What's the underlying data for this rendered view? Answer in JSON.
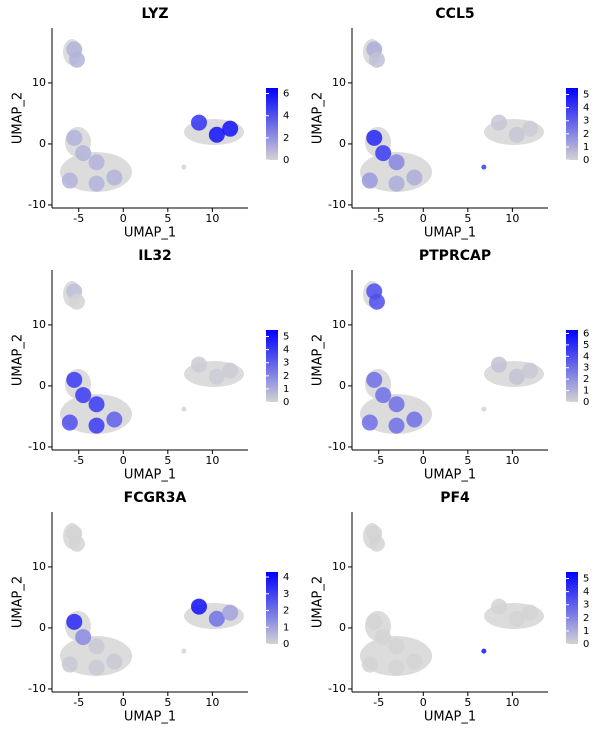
{
  "chart_data": [
    {
      "type": "scatter",
      "title": "LYZ",
      "xlabel": "UMAP_1",
      "ylabel": "UMAP_2",
      "x": [
        -5.5,
        -5.2,
        -5.5,
        -4.5,
        -3,
        -6,
        -3,
        -1,
        8.5,
        10.5,
        12,
        6.8
      ],
      "y": [
        15.5,
        13.8,
        1,
        -1.5,
        -3,
        -6,
        -6.5,
        -5.5,
        3.5,
        1.5,
        2.5,
        -3.8
      ],
      "values": [
        1,
        1,
        1,
        1,
        1,
        1,
        1,
        1,
        5,
        6,
        6,
        0
      ],
      "xlim": [
        -8,
        14
      ],
      "ylim": [
        -10.5,
        19
      ],
      "xticks": [
        -5,
        0,
        5,
        10
      ],
      "yticks": [
        -10,
        0,
        10
      ],
      "clim": [
        0,
        6.5
      ],
      "cticks": [
        0,
        2,
        4,
        6
      ],
      "color_low": "#d3d3d3",
      "color_high": "#0000ff"
    },
    {
      "type": "scatter",
      "title": "CCL5",
      "xlabel": "UMAP_1",
      "ylabel": "UMAP_2",
      "x": [
        -5.5,
        -5.2,
        -5.5,
        -4.5,
        -3,
        -6,
        -3,
        -1,
        8.5,
        10.5,
        12,
        6.8
      ],
      "y": [
        15.5,
        13.8,
        1,
        -1.5,
        -3,
        -6,
        -6.5,
        -5.5,
        3.5,
        1.5,
        2.5,
        -3.8
      ],
      "values": [
        1,
        0.5,
        4.5,
        4,
        2,
        1.5,
        1,
        1,
        0.3,
        0.3,
        0.2,
        4
      ],
      "xlim": [
        -8,
        14
      ],
      "ylim": [
        -10.5,
        19
      ],
      "xticks": [
        -5,
        0,
        5,
        10
      ],
      "yticks": [
        -10,
        0,
        10
      ],
      "clim": [
        0,
        5.5
      ],
      "cticks": [
        0,
        1,
        2,
        3,
        4,
        5
      ],
      "color_low": "#d3d3d3",
      "color_high": "#0000ff"
    },
    {
      "type": "scatter",
      "title": "IL32",
      "xlabel": "UMAP_1",
      "ylabel": "UMAP_2",
      "x": [
        -5.5,
        -5.2,
        -5.5,
        -4.5,
        -3,
        -6,
        -3,
        -1,
        8.5,
        10.5,
        12,
        6.8
      ],
      "y": [
        15.5,
        13.8,
        1,
        -1.5,
        -3,
        -6,
        -6.5,
        -5.5,
        3.5,
        1.5,
        2.5,
        -3.8
      ],
      "values": [
        0.5,
        0,
        4,
        4,
        4,
        3.5,
        4,
        3,
        0.2,
        0.2,
        0.2,
        0
      ],
      "xlim": [
        -8,
        14
      ],
      "ylim": [
        -10.5,
        19
      ],
      "xticks": [
        -5,
        0,
        5,
        10
      ],
      "yticks": [
        -10,
        0,
        10
      ],
      "clim": [
        0,
        5.5
      ],
      "cticks": [
        0,
        1,
        2,
        3,
        4,
        5
      ],
      "color_low": "#d3d3d3",
      "color_high": "#0000ff"
    },
    {
      "type": "scatter",
      "title": "PTPRCAP",
      "xlabel": "UMAP_1",
      "ylabel": "UMAP_2",
      "x": [
        -5.5,
        -5.2,
        -5.5,
        -4.5,
        -3,
        -6,
        -3,
        -1,
        8.5,
        10.5,
        12,
        6.8
      ],
      "y": [
        15.5,
        13.8,
        1,
        -1.5,
        -3,
        -6,
        -6.5,
        -5.5,
        3.5,
        1.5,
        2.5,
        -3.8
      ],
      "values": [
        4,
        4,
        3,
        3,
        3,
        3,
        3,
        3,
        0.5,
        0.5,
        0.3,
        0
      ],
      "xlim": [
        -8,
        14
      ],
      "ylim": [
        -10.5,
        19
      ],
      "xticks": [
        -5,
        0,
        5,
        10
      ],
      "yticks": [
        -10,
        0,
        10
      ],
      "clim": [
        0,
        6.3
      ],
      "cticks": [
        0,
        1,
        2,
        3,
        4,
        5,
        6
      ],
      "color_low": "#d3d3d3",
      "color_high": "#0000ff"
    },
    {
      "type": "scatter",
      "title": "FCGR3A",
      "xlabel": "UMAP_1",
      "ylabel": "UMAP_2",
      "x": [
        -5.5,
        -5.2,
        -5.5,
        -4.5,
        -3,
        -6,
        -3,
        -1,
        8.5,
        10.5,
        12,
        6.8
      ],
      "y": [
        15.5,
        13.8,
        1,
        -1.5,
        -3,
        -6,
        -6.5,
        -5.5,
        3.5,
        1.5,
        2.5,
        -3.8
      ],
      "values": [
        0,
        0,
        3.5,
        1.5,
        0.2,
        0.2,
        0.2,
        0.2,
        4,
        2,
        1,
        0
      ],
      "xlim": [
        -8,
        14
      ],
      "ylim": [
        -10.5,
        19
      ],
      "xticks": [
        -5,
        0,
        5,
        10
      ],
      "yticks": [
        -10,
        0,
        10
      ],
      "clim": [
        0,
        4.3
      ],
      "cticks": [
        0,
        1,
        2,
        3,
        4
      ],
      "color_low": "#d3d3d3",
      "color_high": "#0000ff"
    },
    {
      "type": "scatter",
      "title": "PF4",
      "xlabel": "UMAP_1",
      "ylabel": "UMAP_2",
      "x": [
        -5.5,
        -5.2,
        -5.5,
        -4.5,
        -3,
        -6,
        -3,
        -1,
        8.5,
        10.5,
        12,
        6.8
      ],
      "y": [
        15.5,
        13.8,
        1,
        -1.5,
        -3,
        -6,
        -6.5,
        -5.5,
        3.5,
        1.5,
        2.5,
        -3.8
      ],
      "values": [
        0,
        0,
        0,
        0,
        0,
        0,
        0,
        0,
        0,
        0,
        0,
        5
      ],
      "xlim": [
        -8,
        14
      ],
      "ylim": [
        -10.5,
        19
      ],
      "xticks": [
        -5,
        0,
        5,
        10
      ],
      "yticks": [
        -10,
        0,
        10
      ],
      "clim": [
        0,
        5.5
      ],
      "cticks": [
        0,
        1,
        2,
        3,
        4,
        5
      ],
      "color_low": "#d3d3d3",
      "color_high": "#0000ff"
    }
  ]
}
